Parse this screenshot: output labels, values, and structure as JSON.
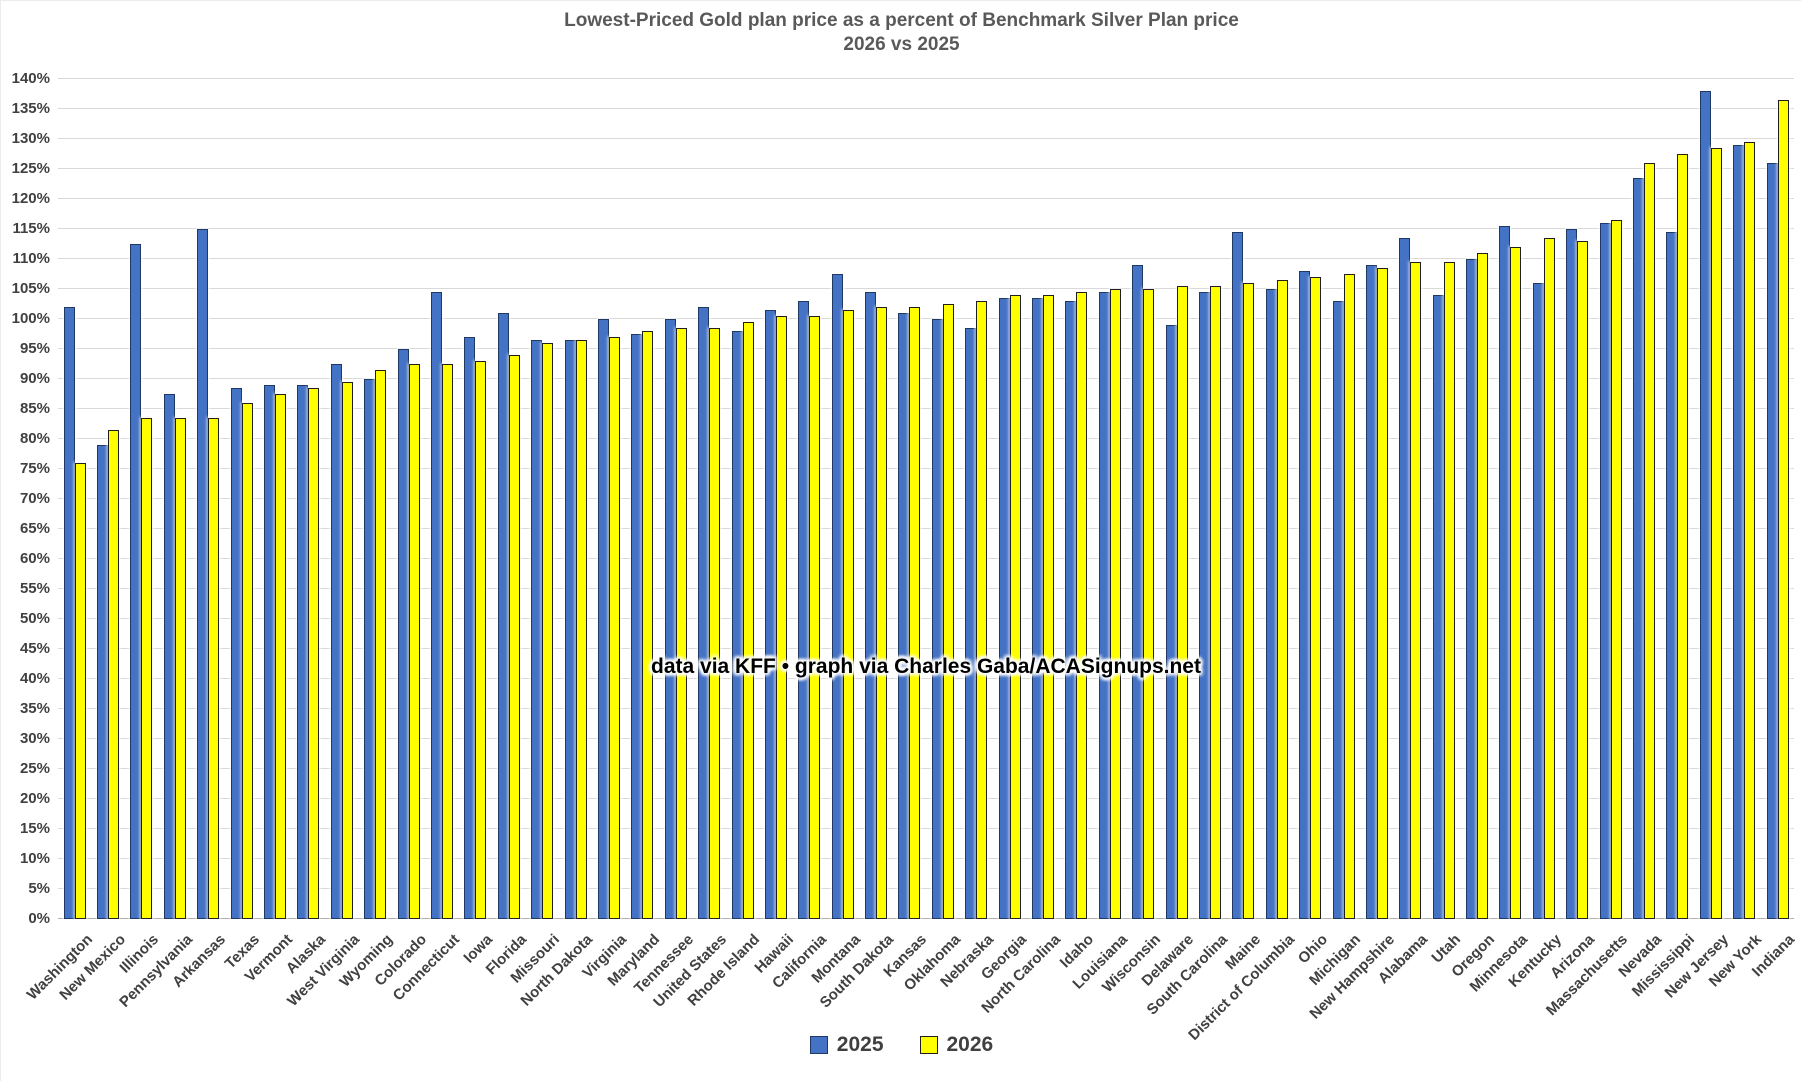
{
  "title": {
    "line1": "Lowest-Priced Gold plan price as a percent of Benchmark Silver Plan price",
    "line2": "2026 vs 2025"
  },
  "annotation": "data via KFF • graph via Charles Gaba/ACASignups.net",
  "axis": {
    "y_min": 0,
    "y_max": 140,
    "y_step": 5,
    "y_suffix": "%"
  },
  "colors": {
    "bar_2025_fill": "#4472C4",
    "bar_2025_border": "#1F3864",
    "bar_2026_fill": "#FFFF00",
    "bar_2026_border": "#1F1F1F",
    "gridline": "#D9D9D9",
    "axis_line": "#ADADAD",
    "tick_text": "#404040",
    "title_text": "#595959"
  },
  "legend": [
    {
      "label": "2025",
      "fill": "#4472C4",
      "border": "#1F3864"
    },
    {
      "label": "2026",
      "fill": "#FFFF00",
      "border": "#1F1F1F"
    }
  ],
  "chart_data": {
    "type": "bar",
    "title": "Lowest-Priced Gold plan price as a percent of Benchmark Silver Plan price 2026 vs 2025",
    "xlabel": "",
    "ylabel": "",
    "ylim": [
      0,
      140
    ],
    "grid": true,
    "legend_position": "bottom",
    "categories": [
      "Washington",
      "New Mexico",
      "Illinois",
      "Pennsylvania",
      "Arkansas",
      "Texas",
      "Vermont",
      "Alaska",
      "West Virginia",
      "Wyoming",
      "Colorado",
      "Connecticut",
      "Iowa",
      "Florida",
      "Missouri",
      "North Dakota",
      "Virginia",
      "Maryland",
      "Tennessee",
      "United States",
      "Rhode Island",
      "Hawaii",
      "California",
      "Montana",
      "South Dakota",
      "Kansas",
      "Oklahoma",
      "Nebraska",
      "Georgia",
      "North Carolina",
      "Idaho",
      "Louisiana",
      "Wisconsin",
      "Delaware",
      "South Carolina",
      "Maine",
      "District of Columbia",
      "Ohio",
      "Michigan",
      "New Hampshire",
      "Alabama",
      "Utah",
      "Oregon",
      "Minnesota",
      "Kentucky",
      "Arizona",
      "Massachusetts",
      "Nevada",
      "Mississippi",
      "New Jersey",
      "New York",
      "Indiana"
    ],
    "series": [
      {
        "name": "2025",
        "values": [
          102,
          79,
          112.5,
          87.5,
          115,
          88.5,
          89,
          89,
          92.5,
          90,
          95,
          104.5,
          97,
          101,
          96.5,
          96.5,
          100,
          97.5,
          100,
          102,
          98,
          101.5,
          103,
          107.5,
          104.5,
          101,
          100,
          98.5,
          103.5,
          103.5,
          103,
          104.5,
          109,
          99,
          104.5,
          114.5,
          105,
          108,
          103,
          109,
          113.5,
          104,
          110,
          115.5,
          106,
          115,
          116,
          123.5,
          114.5,
          138,
          129,
          126
        ]
      },
      {
        "name": "2026",
        "values": [
          76,
          81.5,
          83.5,
          83.5,
          83.5,
          86,
          87.5,
          88.5,
          89.5,
          91.5,
          92.5,
          92.5,
          93,
          94,
          96,
          96.5,
          97,
          98,
          98.5,
          98.5,
          99.5,
          100.5,
          100.5,
          101.5,
          102,
          102,
          102.5,
          103,
          104,
          104,
          104.5,
          105,
          105,
          105.5,
          105.5,
          106,
          106.5,
          107,
          107.5,
          108.5,
          109.5,
          109.5,
          111,
          112,
          113.5,
          113,
          116.5,
          126,
          127.5,
          128.5,
          129.5,
          136.5
        ]
      }
    ]
  }
}
